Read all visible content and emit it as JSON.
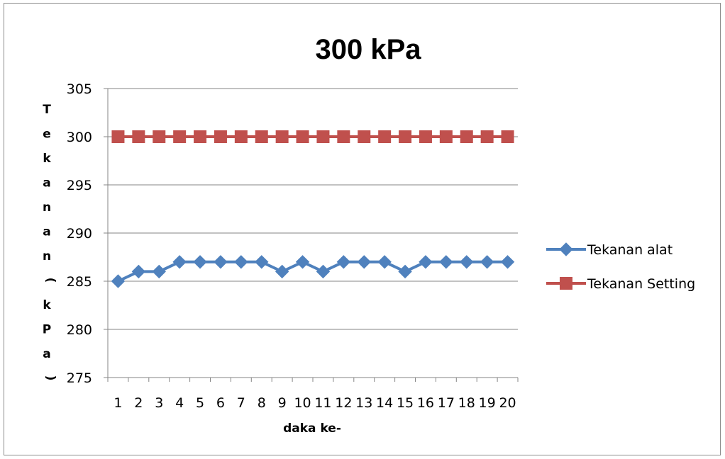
{
  "chart_data": {
    "type": "line",
    "title": "300 kPa",
    "xlabel": "daka ke-",
    "ylabel": "Tekanan ( kPa )",
    "categories": [
      "1",
      "2",
      "3",
      "4",
      "5",
      "6",
      "7",
      "8",
      "9",
      "10",
      "11",
      "12",
      "13",
      "14",
      "15",
      "16",
      "17",
      "18",
      "19",
      "20"
    ],
    "ylim": [
      275,
      305
    ],
    "yticks": [
      275,
      280,
      285,
      290,
      295,
      300,
      305
    ],
    "grid": true,
    "legend": "right",
    "series": [
      {
        "name": "Tekanan alat",
        "color": "#4f81bd",
        "marker": "diamond",
        "values": [
          285,
          286,
          286,
          287,
          287,
          287,
          287,
          287,
          286,
          287,
          286,
          287,
          287,
          287,
          286,
          287,
          287,
          287,
          287,
          287
        ]
      },
      {
        "name": "Tekanan Setting",
        "color": "#c0504d",
        "marker": "square",
        "values": [
          300,
          300,
          300,
          300,
          300,
          300,
          300,
          300,
          300,
          300,
          300,
          300,
          300,
          300,
          300,
          300,
          300,
          300,
          300,
          300
        ]
      }
    ]
  }
}
